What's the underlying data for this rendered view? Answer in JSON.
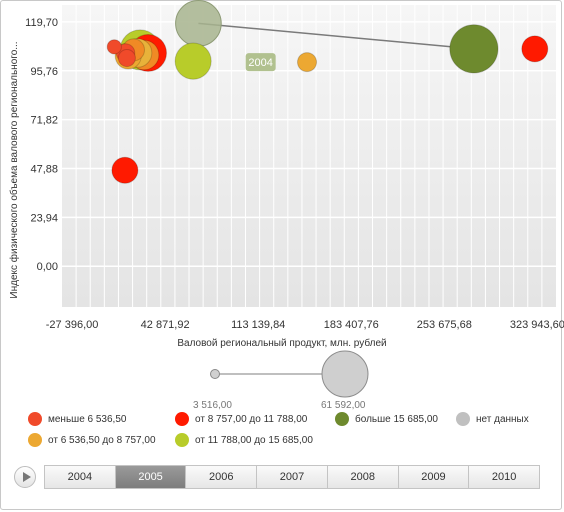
{
  "chart_data": {
    "type": "scatter",
    "subtype": "bubble",
    "xlabel": "Валовой региональный продукт, млн. рублей",
    "ylabel": "Индекс физического объема валового регионального...",
    "x_ticks": [
      "-27 396,00",
      "42 871,92",
      "113 139,84",
      "183 407,76",
      "253 675,68",
      "323 943,60"
    ],
    "x_tick_values": [
      -27396,
      42871.92,
      113139.84,
      183407.76,
      253675.68,
      323943.6
    ],
    "y_ticks": [
      "0,00",
      "23,94",
      "47,88",
      "71,82",
      "95,76",
      "119,70"
    ],
    "y_tick_values": [
      0,
      23.94,
      47.88,
      71.82,
      95.76,
      119.7
    ],
    "xlim": [
      -35000,
      338000
    ],
    "ylim": [
      -20,
      128
    ],
    "grid": true,
    "legend_position": "bottom",
    "points": [
      {
        "x": 4500,
        "y": 107.5,
        "size": 4200,
        "color": "#f04a2a"
      },
      {
        "x": 24000,
        "y": 106,
        "size": 33000,
        "color": "#b8cc2a"
      },
      {
        "x": 30000,
        "y": 104.5,
        "size": 28000,
        "color": "#ff1a00"
      },
      {
        "x": 27000,
        "y": 103.5,
        "size": 18000,
        "color": "#f08a25"
      },
      {
        "x": 22000,
        "y": 104.5,
        "size": 17000,
        "color": "#e8b23a"
      },
      {
        "x": 15000,
        "y": 103,
        "size": 14000,
        "color": "#eca832"
      },
      {
        "x": 19000,
        "y": 106,
        "size": 10000,
        "color": "#f08a25"
      },
      {
        "x": 13000,
        "y": 104.5,
        "size": 7000,
        "color": "#f04a2a"
      },
      {
        "x": 14000,
        "y": 102,
        "size": 6000,
        "color": "#f04a2a"
      },
      {
        "x": 12500,
        "y": 47,
        "size": 14000,
        "color": "#ff1a00"
      },
      {
        "x": 64000,
        "y": 100.5,
        "size": 27000,
        "color": "#b8cc2a"
      },
      {
        "x": 150000,
        "y": 100,
        "size": 7500,
        "color": "#eca832"
      },
      {
        "x": 276000,
        "y": 106.5,
        "size": 48000,
        "color": "#6e8a2e"
      },
      {
        "x": 322000,
        "y": 106.5,
        "size": 14000,
        "color": "#ff1a00"
      }
    ],
    "trail": {
      "label": "2004",
      "from": {
        "x": 68000,
        "y": 119
      },
      "to": {
        "x": 276000,
        "y": 106.5
      },
      "bubble_size": 43000,
      "bubble_color": "#a7b48e",
      "label_at": {
        "x": 115000,
        "y": 100
      },
      "label_color": "#b1c18f"
    },
    "size_legend": {
      "min_label": "3 516,00",
      "max_label": "61 592,00",
      "min_value": 3516,
      "max_value": 61592
    }
  },
  "legend": [
    {
      "label": "меньше 6 536,50",
      "color": "#f04a2a"
    },
    {
      "label": "от 8 757,00 до 11 788,00",
      "color": "#ff1a00"
    },
    {
      "label": "больше 15 685,00",
      "color": "#6e8a2e"
    },
    {
      "label": "нет данных",
      "color": "#c0c0c0"
    },
    {
      "label": "от 6 536,50 до 8 757,00",
      "color": "#eca832"
    },
    {
      "label": "от 11 788,00 до 15 685,00",
      "color": "#b8cc2a"
    }
  ],
  "timeline": {
    "years": [
      "2004",
      "2005",
      "2006",
      "2007",
      "2008",
      "2009",
      "2010"
    ],
    "selected": "2005"
  }
}
